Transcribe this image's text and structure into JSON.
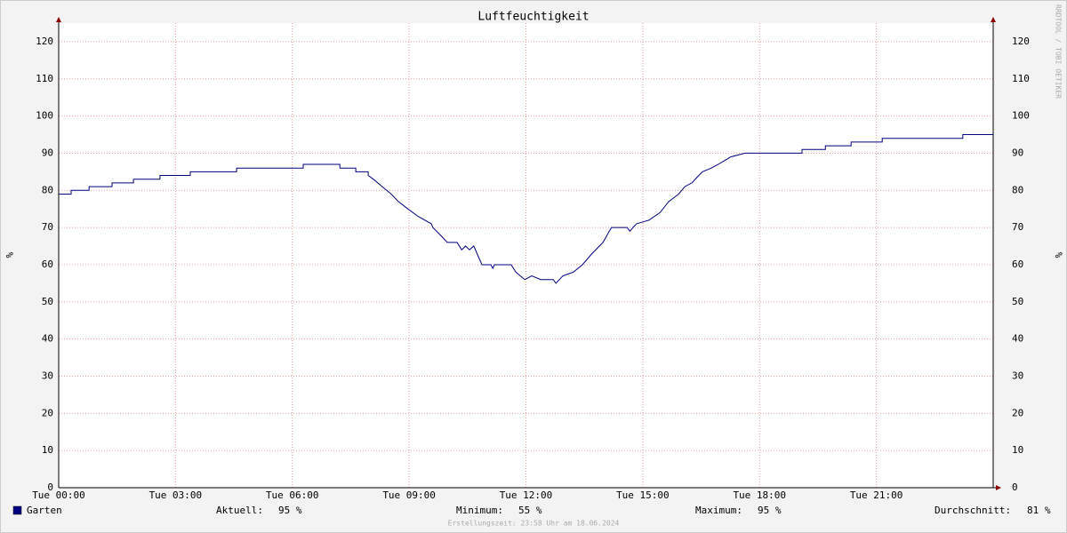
{
  "chart_data": {
    "type": "line",
    "title": "Luftfeuchtigkeit",
    "y_label": "%",
    "watermark": "RRDTOOL / TOBI OETIKER",
    "xlim": [
      0,
      24
    ],
    "xticks": [
      {
        "value": 0,
        "label": "Tue 00:00"
      },
      {
        "value": 3,
        "label": "Tue 03:00"
      },
      {
        "value": 6,
        "label": "Tue 06:00"
      },
      {
        "value": 9,
        "label": "Tue 09:00"
      },
      {
        "value": 12,
        "label": "Tue 12:00"
      },
      {
        "value": 15,
        "label": "Tue 15:00"
      },
      {
        "value": 18,
        "label": "Tue 18:00"
      },
      {
        "value": 21,
        "label": "Tue 21:00"
      }
    ],
    "ylim": [
      0,
      125
    ],
    "yticks": [
      0,
      10,
      20,
      30,
      40,
      50,
      60,
      70,
      80,
      90,
      100,
      110,
      120
    ],
    "grid": true,
    "x": [
      0,
      0.32,
      0.32,
      0.78,
      0.78,
      1.37,
      1.37,
      1.92,
      1.92,
      2.6,
      2.6,
      3.38,
      3.38,
      4.57,
      4.57,
      6.28,
      6.28,
      7.22,
      7.22,
      7.63,
      7.63,
      7.95,
      7.95,
      8.08,
      8.31,
      8.54,
      8.72,
      8.97,
      9.23,
      9.57,
      9.61,
      9.8,
      9.98,
      10.23,
      10.35,
      10.45,
      10.55,
      10.66,
      10.87,
      11.1,
      11.15,
      11.19,
      11.62,
      11.74,
      11.97,
      12.15,
      12.38,
      12.7,
      12.77,
      12.95,
      13.22,
      13.45,
      13.7,
      13.98,
      14.14,
      14.2,
      14.6,
      14.67,
      14.75,
      14.84,
      15.16,
      15.44,
      15.67,
      15.92,
      16.08,
      16.26,
      16.44,
      16.53,
      16.76,
      16.94,
      17.1,
      17.26,
      17.63,
      19.09,
      19.09,
      19.69,
      19.69,
      20.35,
      20.35,
      21.15,
      21.15,
      23.22,
      23.22,
      24
    ],
    "series": [
      {
        "name": "Garten",
        "color": "#000080",
        "values": [
          79,
          79,
          80,
          80,
          81,
          81,
          82,
          82,
          83,
          83,
          84,
          84,
          85,
          85,
          86,
          86,
          87,
          87,
          86,
          86,
          85,
          85,
          84,
          83,
          81,
          79,
          77,
          75,
          73,
          71,
          70,
          68,
          66,
          66,
          64,
          65,
          64,
          65,
          60,
          60,
          59,
          60,
          60,
          58,
          56,
          57,
          56,
          56,
          55,
          57,
          58,
          60,
          63,
          66,
          69,
          70,
          70,
          69,
          70,
          71,
          72,
          74,
          77,
          79,
          81,
          82,
          84,
          85,
          86,
          87,
          88,
          89,
          90,
          90,
          91,
          91,
          92,
          92,
          93,
          93,
          94,
          94,
          95,
          95
        ]
      }
    ],
    "stats": [
      {
        "label": "Aktuell:",
        "text": "95 %"
      },
      {
        "label": "Minimum:",
        "text": "55 %"
      },
      {
        "label": "Maximum:",
        "text": "95 %"
      },
      {
        "label": "Durchschnitt:",
        "text": "81 %"
      }
    ],
    "footer": "Erstellungszeit: 23:58 Uhr am 18.06.2024"
  }
}
